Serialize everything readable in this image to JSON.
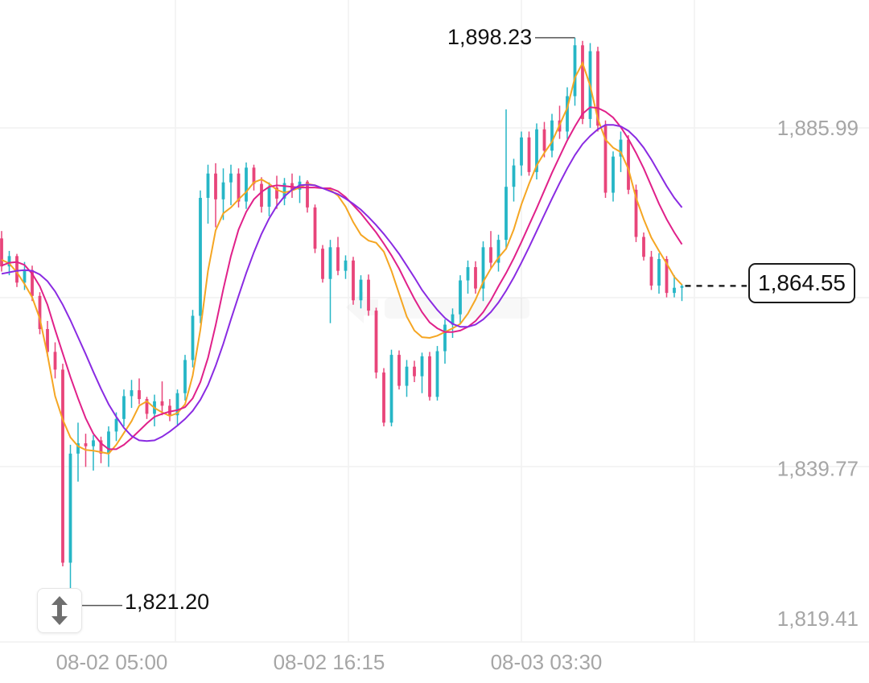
{
  "chart_data": {
    "type": "ohlc-candlestick",
    "price_axis": {
      "ticks": [
        "1,885.99",
        "1,839.77",
        "1,819.41"
      ],
      "tick_values": [
        1885.99,
        1839.77,
        1819.41
      ]
    },
    "time_axis": {
      "ticks": [
        "08-02 05:00",
        "08-02 16:15",
        "08-03 03:30"
      ]
    },
    "current_price": "1,864.55",
    "current_price_value": 1864.55,
    "high_label": "1,898.23",
    "high_value": 1898.23,
    "low_label": "1,821.20",
    "low_value": 1821.2,
    "colors": {
      "up": "#26b6c6",
      "down": "#e8457a",
      "ma_fast": "#f5a623",
      "ma_mid": "#e0218a",
      "ma_slow": "#8a2be2",
      "grid": "#f1f1f1",
      "axis_text": "#a6a6a6"
    },
    "moving_averages": [
      {
        "color": "#f5a623",
        "values": [
          1868.1,
          1867.6,
          1866.4,
          1864.8,
          1863.0,
          1860.1,
          1855.2,
          1849.6,
          1846.4,
          1844.0,
          1842.8,
          1842.3,
          1842.2,
          1842.0,
          1841.8,
          1843.0,
          1844.6,
          1846.2,
          1848.3,
          1848.9,
          1848.0,
          1847.4,
          1846.9,
          1847.3,
          1848.5,
          1852.4,
          1858.6,
          1866.6,
          1872.1,
          1874.4,
          1875.2,
          1876.3,
          1877.3,
          1878.6,
          1879.0,
          1878.4,
          1877.6,
          1877.2,
          1877.5,
          1877.9,
          1878.4,
          1878.2,
          1877.8,
          1877.6,
          1876.8,
          1875.3,
          1873.2,
          1871.5,
          1870.7,
          1870.4,
          1869.2,
          1866.6,
          1863.5,
          1860.4,
          1858.5,
          1857.6,
          1857.5,
          1857.8,
          1858.3,
          1858.8,
          1859.4,
          1860.8,
          1862.7,
          1865.1,
          1866.9,
          1868.4,
          1869.6,
          1872.2,
          1875.6,
          1878.4,
          1880.9,
          1882.6,
          1884.1,
          1886.4,
          1888.7,
          1892.8,
          1894.8,
          1891.7,
          1887.2,
          1884.4,
          1883.3,
          1882.7,
          1880.4,
          1876.5,
          1873.6,
          1871.1,
          1869.3,
          1867.6,
          1865.8,
          1864.7
        ]
      },
      {
        "color": "#e0218a",
        "values": [
          1867.3,
          1867.7,
          1867.8,
          1867.4,
          1866.2,
          1864.5,
          1862.0,
          1858.6,
          1855.4,
          1852.2,
          1849.3,
          1846.6,
          1844.5,
          1843.2,
          1842.4,
          1842.4,
          1843.0,
          1843.9,
          1844.9,
          1845.9,
          1846.8,
          1847.2,
          1847.5,
          1847.7,
          1848.1,
          1849.3,
          1851.5,
          1854.8,
          1859.2,
          1864.1,
          1868.6,
          1872.2,
          1874.6,
          1876.3,
          1877.3,
          1878.0,
          1878.2,
          1878.1,
          1878.0,
          1877.9,
          1877.9,
          1877.9,
          1877.8,
          1877.8,
          1877.4,
          1876.6,
          1875.5,
          1874.4,
          1873.1,
          1871.8,
          1870.3,
          1868.7,
          1866.9,
          1864.8,
          1862.8,
          1861.0,
          1859.6,
          1858.8,
          1858.3,
          1858.3,
          1858.5,
          1859.0,
          1859.8,
          1861.0,
          1862.6,
          1864.5,
          1866.3,
          1868.3,
          1870.5,
          1872.8,
          1875.1,
          1877.5,
          1879.9,
          1882.1,
          1884.3,
          1886.2,
          1887.9,
          1888.8,
          1888.7,
          1888.2,
          1887.4,
          1886.1,
          1884.5,
          1882.6,
          1880.5,
          1878.1,
          1875.7,
          1873.6,
          1871.8,
          1870.2
        ]
      },
      {
        "color": "#8a2be2",
        "values": [
          1866.2,
          1866.4,
          1866.6,
          1866.7,
          1866.6,
          1866.1,
          1865.2,
          1863.8,
          1862.0,
          1859.9,
          1857.6,
          1855.3,
          1852.9,
          1850.6,
          1848.5,
          1846.8,
          1845.3,
          1844.2,
          1843.6,
          1843.5,
          1843.6,
          1844.1,
          1844.8,
          1845.6,
          1846.5,
          1847.6,
          1849.1,
          1851.1,
          1853.7,
          1856.7,
          1860.0,
          1863.2,
          1866.3,
          1869.1,
          1871.6,
          1873.7,
          1875.4,
          1876.7,
          1877.6,
          1878.2,
          1878.3,
          1878.2,
          1877.8,
          1877.4,
          1877.0,
          1876.4,
          1875.7,
          1874.9,
          1873.9,
          1872.8,
          1871.6,
          1870.3,
          1868.9,
          1867.3,
          1865.7,
          1864.0,
          1862.6,
          1861.3,
          1860.2,
          1859.4,
          1859.0,
          1859.0,
          1859.3,
          1860.0,
          1861.0,
          1862.3,
          1863.9,
          1865.7,
          1867.7,
          1869.8,
          1872.0,
          1874.2,
          1876.4,
          1878.5,
          1880.5,
          1882.3,
          1883.8,
          1884.9,
          1885.8,
          1886.4,
          1886.4,
          1886.2,
          1885.6,
          1884.6,
          1883.3,
          1881.7,
          1879.9,
          1878.1,
          1876.5,
          1875.2
        ]
      }
    ],
    "candles": [
      [
        1871.0,
        1872.0,
        1866.5,
        1867.2
      ],
      [
        1867.2,
        1869.3,
        1866.0,
        1868.6
      ],
      [
        1868.6,
        1868.9,
        1864.4,
        1865.0
      ],
      [
        1865.0,
        1867.8,
        1864.0,
        1866.7
      ],
      [
        1866.7,
        1867.3,
        1862.5,
        1863.2
      ],
      [
        1863.2,
        1863.7,
        1858.0,
        1858.7
      ],
      [
        1858.7,
        1859.8,
        1855.0,
        1855.6
      ],
      [
        1855.6,
        1856.9,
        1852.0,
        1853.2
      ],
      [
        1853.2,
        1854.0,
        1826.5,
        1827.0
      ],
      [
        1827.0,
        1843.0,
        1821.2,
        1841.8
      ],
      [
        1841.8,
        1846.0,
        1838.0,
        1843.2
      ],
      [
        1843.2,
        1844.5,
        1840.0,
        1842.8
      ],
      [
        1842.8,
        1844.3,
        1839.5,
        1843.6
      ],
      [
        1843.6,
        1844.1,
        1840.5,
        1841.8
      ],
      [
        1841.8,
        1845.5,
        1840.0,
        1844.8
      ],
      [
        1844.8,
        1847.4,
        1843.5,
        1846.5
      ],
      [
        1846.5,
        1850.5,
        1845.5,
        1849.6
      ],
      [
        1849.6,
        1851.8,
        1848.0,
        1850.4
      ],
      [
        1850.4,
        1852.0,
        1848.5,
        1849.2
      ],
      [
        1849.2,
        1849.5,
        1846.5,
        1847.2
      ],
      [
        1847.2,
        1849.8,
        1845.5,
        1848.9
      ],
      [
        1848.9,
        1851.6,
        1847.0,
        1848.3
      ],
      [
        1848.3,
        1849.2,
        1846.2,
        1847.0
      ],
      [
        1847.0,
        1850.5,
        1845.5,
        1850.0
      ],
      [
        1850.0,
        1855.2,
        1849.0,
        1854.5
      ],
      [
        1854.5,
        1861.3,
        1853.5,
        1860.5
      ],
      [
        1860.5,
        1877.5,
        1859.5,
        1876.5
      ],
      [
        1876.5,
        1881.0,
        1873.0,
        1879.8
      ],
      [
        1879.8,
        1881.2,
        1872.5,
        1876.3
      ],
      [
        1876.3,
        1880.5,
        1873.5,
        1878.6
      ],
      [
        1878.6,
        1881.0,
        1875.5,
        1879.8
      ],
      [
        1879.8,
        1880.5,
        1875.2,
        1876.0
      ],
      [
        1876.0,
        1881.3,
        1875.0,
        1880.6
      ],
      [
        1880.6,
        1881.0,
        1877.5,
        1878.4
      ],
      [
        1878.4,
        1879.3,
        1874.5,
        1875.3
      ],
      [
        1875.3,
        1878.6,
        1874.0,
        1877.9
      ],
      [
        1877.9,
        1879.5,
        1875.0,
        1876.4
      ],
      [
        1876.4,
        1879.2,
        1875.5,
        1878.5
      ],
      [
        1878.5,
        1879.8,
        1876.5,
        1877.6
      ],
      [
        1877.6,
        1879.5,
        1875.8,
        1878.7
      ],
      [
        1878.7,
        1878.9,
        1874.5,
        1875.2
      ],
      [
        1875.2,
        1875.6,
        1869.0,
        1869.6
      ],
      [
        1869.6,
        1870.1,
        1865.0,
        1865.5
      ],
      [
        1865.5,
        1870.8,
        1859.5,
        1869.8
      ],
      [
        1869.8,
        1871.2,
        1866.0,
        1866.6
      ],
      [
        1866.6,
        1868.7,
        1865.5,
        1868.0
      ],
      [
        1868.0,
        1868.5,
        1862.0,
        1862.6
      ],
      [
        1862.6,
        1866.0,
        1861.5,
        1865.4
      ],
      [
        1865.4,
        1866.1,
        1860.5,
        1861.2
      ],
      [
        1861.2,
        1861.6,
        1852.0,
        1852.8
      ],
      [
        1852.8,
        1853.4,
        1845.5,
        1846.0
      ],
      [
        1846.0,
        1855.9,
        1845.5,
        1855.2
      ],
      [
        1855.2,
        1855.8,
        1850.5,
        1851.0
      ],
      [
        1851.0,
        1854.5,
        1849.5,
        1853.6
      ],
      [
        1853.6,
        1854.4,
        1851.5,
        1852.3
      ],
      [
        1852.3,
        1855.5,
        1850.0,
        1855.0
      ],
      [
        1855.0,
        1855.6,
        1849.0,
        1849.5
      ],
      [
        1849.5,
        1856.4,
        1849.0,
        1855.7
      ],
      [
        1855.7,
        1860.0,
        1854.0,
        1859.3
      ],
      [
        1859.3,
        1861.5,
        1857.5,
        1860.7
      ],
      [
        1860.7,
        1866.0,
        1859.5,
        1865.3
      ],
      [
        1865.3,
        1868.0,
        1863.5,
        1867.1
      ],
      [
        1867.1,
        1867.9,
        1863.5,
        1864.2
      ],
      [
        1864.2,
        1870.6,
        1862.5,
        1869.8
      ],
      [
        1869.8,
        1872.0,
        1867.0,
        1867.7
      ],
      [
        1867.7,
        1871.5,
        1866.5,
        1870.8
      ],
      [
        1870.8,
        1888.5,
        1869.5,
        1878.0
      ],
      [
        1878.0,
        1881.8,
        1876.0,
        1880.9
      ],
      [
        1880.9,
        1885.5,
        1879.5,
        1884.7
      ],
      [
        1884.7,
        1885.5,
        1879.5,
        1880.0
      ],
      [
        1880.0,
        1886.6,
        1879.0,
        1885.8
      ],
      [
        1885.8,
        1886.8,
        1882.0,
        1882.9
      ],
      [
        1882.9,
        1887.9,
        1882.0,
        1887.0
      ],
      [
        1887.0,
        1889.0,
        1884.5,
        1885.5
      ],
      [
        1885.5,
        1891.5,
        1884.5,
        1890.3
      ],
      [
        1890.3,
        1898.23,
        1889.0,
        1897.2
      ],
      [
        1897.2,
        1897.8,
        1886.5,
        1887.2
      ],
      [
        1887.2,
        1897.5,
        1886.0,
        1896.4
      ],
      [
        1896.4,
        1897.0,
        1885.5,
        1886.3
      ],
      [
        1886.3,
        1887.0,
        1876.5,
        1877.2
      ],
      [
        1877.2,
        1882.8,
        1876.0,
        1882.1
      ],
      [
        1882.1,
        1885.5,
        1880.0,
        1884.4
      ],
      [
        1884.4,
        1885.0,
        1877.0,
        1877.6
      ],
      [
        1877.6,
        1878.3,
        1870.5,
        1871.2
      ],
      [
        1871.2,
        1871.8,
        1868.0,
        1868.5
      ],
      [
        1868.5,
        1869.3,
        1864.0,
        1864.6
      ],
      [
        1864.6,
        1869.0,
        1863.5,
        1868.2
      ],
      [
        1868.2,
        1868.6,
        1863.0,
        1863.6
      ],
      [
        1863.6,
        1866.0,
        1863.0,
        1864.3
      ],
      [
        1864.3,
        1864.8,
        1862.5,
        1864.55
      ]
    ]
  },
  "controls": {
    "zoom_button_icon": "vertical-resize-icon"
  }
}
